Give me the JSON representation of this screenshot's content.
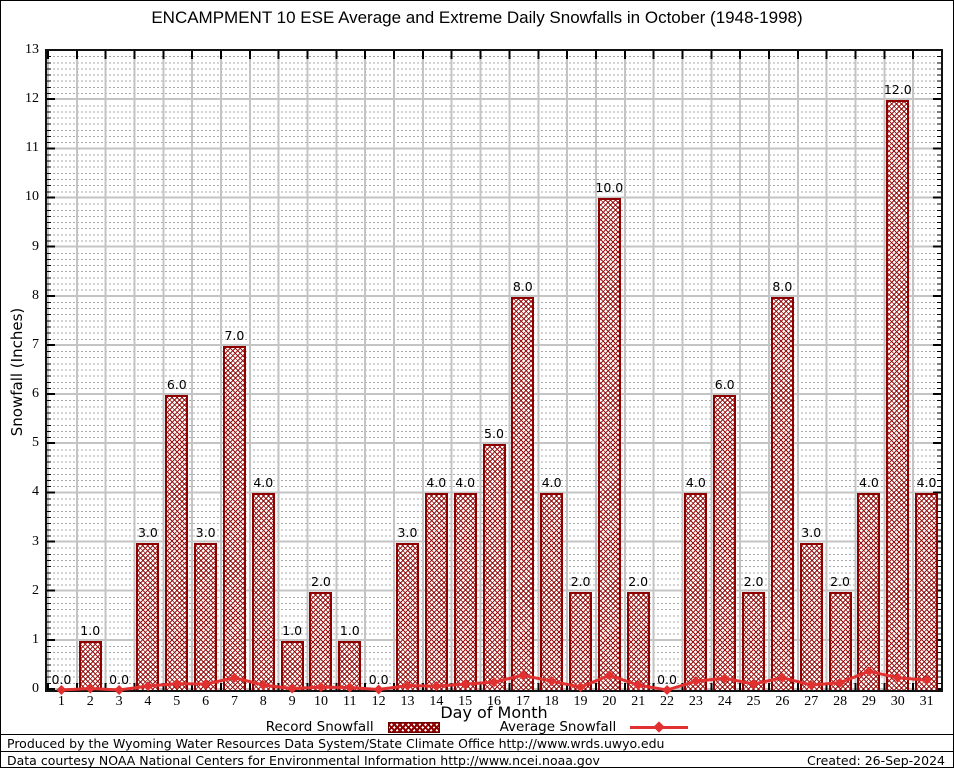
{
  "title": "ENCAMPMENT 10 ESE Average and Extreme Daily Snowfalls in October (1948-1998)",
  "chart_data": {
    "type": "bar",
    "title": "ENCAMPMENT 10 ESE Average and Extreme Daily Snowfalls in October (1948-1998)",
    "xlabel": "Day of Month",
    "ylabel": "Snowfall (Inches)",
    "ylim": [
      0,
      13
    ],
    "ytick_step": 1,
    "grid": "major and dotted minor, gray",
    "legend_position": "bottom",
    "categories": [
      1,
      2,
      3,
      4,
      5,
      6,
      7,
      8,
      9,
      10,
      11,
      12,
      13,
      14,
      15,
      16,
      17,
      18,
      19,
      20,
      21,
      22,
      23,
      24,
      25,
      26,
      27,
      28,
      29,
      30,
      31
    ],
    "series": [
      {
        "name": "Record Snowfall",
        "type": "bar",
        "values": [
          0,
          1,
          0,
          3,
          6,
          3,
          7,
          4,
          1,
          2,
          1,
          0,
          3,
          4,
          4,
          5,
          8,
          4,
          2,
          10,
          2,
          0,
          4,
          6,
          2,
          8,
          3,
          2,
          4,
          12,
          4
        ],
        "labels": [
          "0.0",
          "1.0",
          "0.0",
          "3.0",
          "6.0",
          "3.0",
          "7.0",
          "4.0",
          "1.0",
          "2.0",
          "1.0",
          "0.0",
          "3.0",
          "4.0",
          "4.0",
          "5.0",
          "8.0",
          "4.0",
          "2.0",
          "10.0",
          "2.0",
          "0.0",
          "4.0",
          "6.0",
          "2.0",
          "8.0",
          "3.0",
          "2.0",
          "4.0",
          "12.0",
          "4.0"
        ]
      },
      {
        "name": "Average Snowfall",
        "type": "line",
        "values": [
          0.0,
          0.03,
          0.0,
          0.08,
          0.13,
          0.12,
          0.25,
          0.1,
          0.03,
          0.06,
          0.05,
          0.01,
          0.09,
          0.08,
          0.12,
          0.16,
          0.3,
          0.18,
          0.06,
          0.3,
          0.1,
          0.0,
          0.18,
          0.24,
          0.12,
          0.25,
          0.1,
          0.15,
          0.38,
          0.25,
          0.2
        ]
      }
    ]
  },
  "colors": {
    "record_bar_border": "#8e0000",
    "record_bar_hatch": "#941414",
    "average_line": "#e03030",
    "grid_major": "#c4c4c4",
    "grid_minor": "#a9a9a9",
    "axis_frame": "#111111"
  },
  "footer": {
    "produced_by": "Produced by the Wyoming Water Resources Data System/State Climate Office http://www.wrds.uwyo.edu",
    "data_courtesy": "Data courtesy NOAA National Centers for Environmental Information http://www.ncei.noaa.gov",
    "created": "Created: 26-Sep-2024"
  }
}
